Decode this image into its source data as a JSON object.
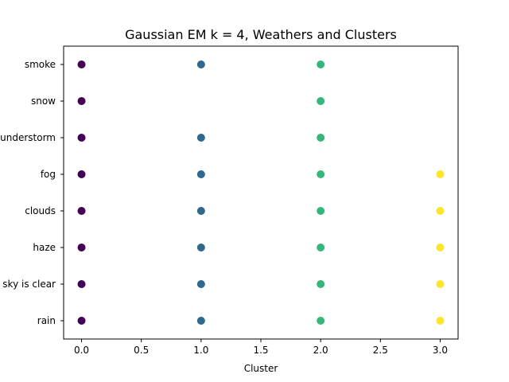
{
  "chart_data": {
    "type": "scatter",
    "title": "Gaussian EM k = 4, Weathers and Clusters",
    "xlabel": "Cluster",
    "ylabel": "",
    "xlim": [
      -0.15,
      3.15
    ],
    "xticks": [
      "0.0",
      "0.5",
      "1.0",
      "1.5",
      "2.0",
      "2.5",
      "3.0"
    ],
    "xtick_values": [
      0,
      0.5,
      1,
      1.5,
      2,
      2.5,
      3
    ],
    "categories": [
      "rain",
      "sky is clear",
      "haze",
      "clouds",
      "fog",
      "thunderstorm",
      "snow",
      "smoke"
    ],
    "grid": false,
    "colors": [
      "#440154",
      "#31688e",
      "#35b779",
      "#fde725"
    ],
    "points": [
      {
        "x": 0,
        "y": "smoke"
      },
      {
        "x": 1,
        "y": "smoke"
      },
      {
        "x": 2,
        "y": "smoke"
      },
      {
        "x": 0,
        "y": "snow"
      },
      {
        "x": 2,
        "y": "snow"
      },
      {
        "x": 0,
        "y": "thunderstorm"
      },
      {
        "x": 1,
        "y": "thunderstorm"
      },
      {
        "x": 2,
        "y": "thunderstorm"
      },
      {
        "x": 0,
        "y": "fog"
      },
      {
        "x": 1,
        "y": "fog"
      },
      {
        "x": 2,
        "y": "fog"
      },
      {
        "x": 3,
        "y": "fog"
      },
      {
        "x": 0,
        "y": "clouds"
      },
      {
        "x": 1,
        "y": "clouds"
      },
      {
        "x": 2,
        "y": "clouds"
      },
      {
        "x": 3,
        "y": "clouds"
      },
      {
        "x": 0,
        "y": "haze"
      },
      {
        "x": 1,
        "y": "haze"
      },
      {
        "x": 2,
        "y": "haze"
      },
      {
        "x": 3,
        "y": "haze"
      },
      {
        "x": 0,
        "y": "sky is clear"
      },
      {
        "x": 1,
        "y": "sky is clear"
      },
      {
        "x": 2,
        "y": "sky is clear"
      },
      {
        "x": 3,
        "y": "sky is clear"
      },
      {
        "x": 0,
        "y": "rain"
      },
      {
        "x": 1,
        "y": "rain"
      },
      {
        "x": 2,
        "y": "rain"
      },
      {
        "x": 3,
        "y": "rain"
      }
    ]
  }
}
